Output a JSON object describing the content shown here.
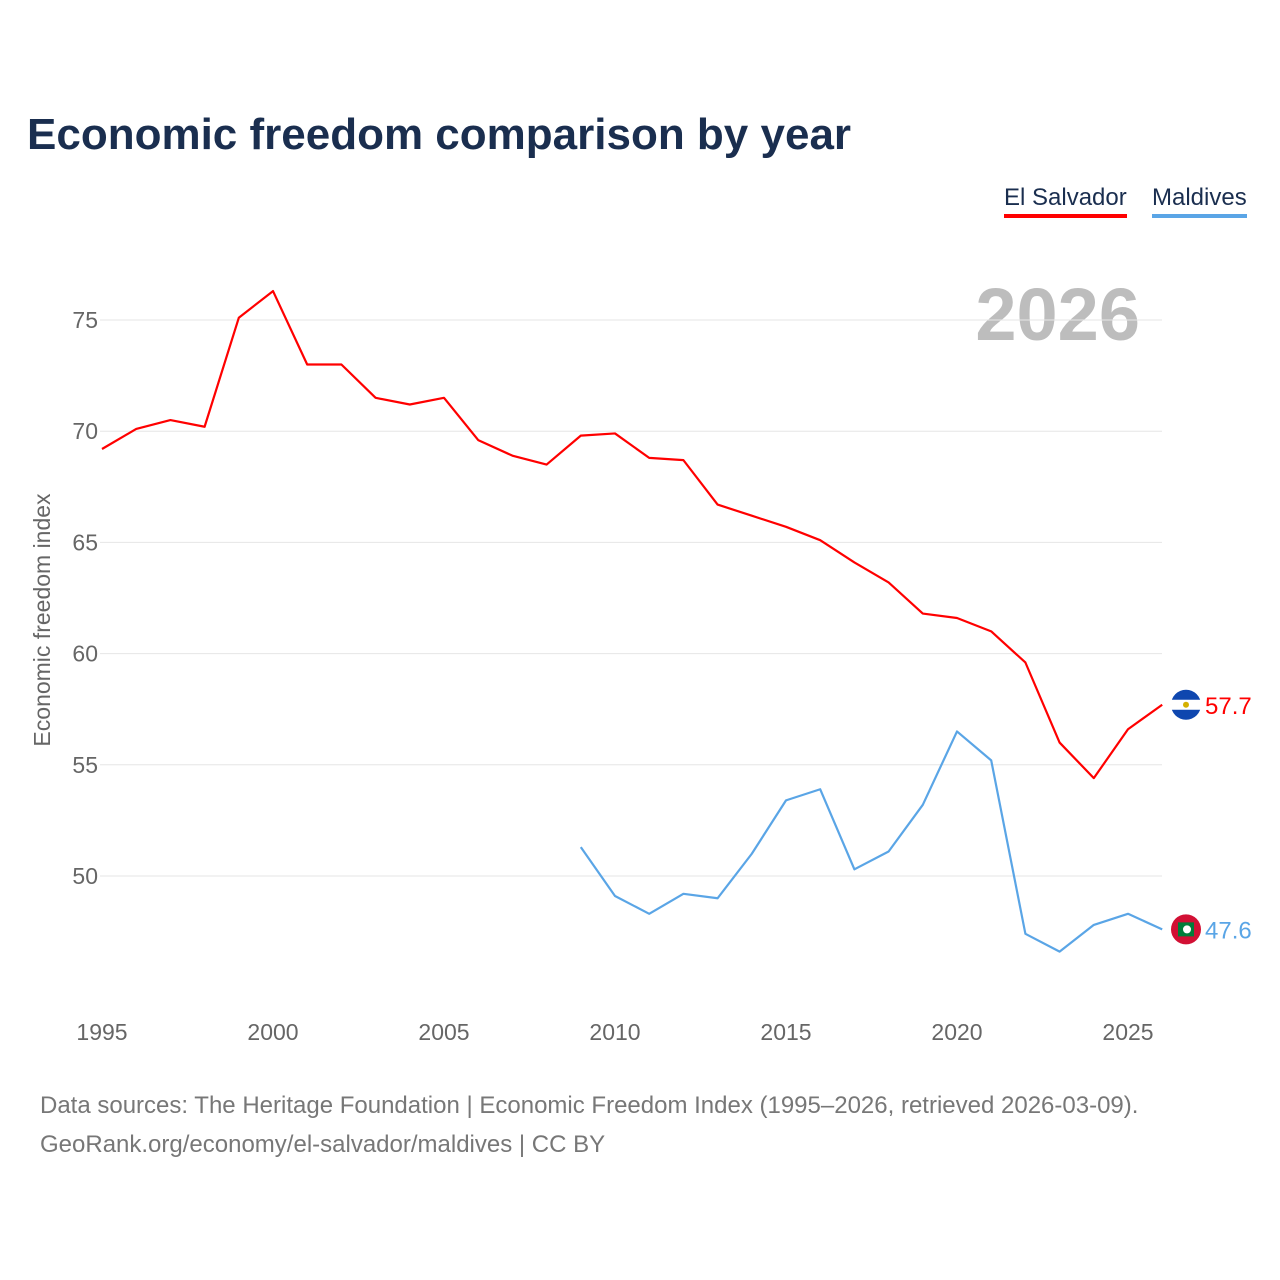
{
  "title": "Economic freedom comparison by year",
  "legend": [
    "El Salvador",
    "Maldives"
  ],
  "year_watermark": "2026",
  "footer": {
    "line1": "Data sources: The Heritage Foundation | Economic Freedom Index (1995–2026, retrieved 2026-03-09).",
    "line2": "GeoRank.org/economy/el-salvador/maldives | CC BY"
  },
  "chart_data": {
    "type": "line",
    "title": "Economic freedom comparison by year",
    "xlabel": "",
    "ylabel": "Economic freedom index",
    "xlim": [
      1995,
      2026
    ],
    "ylim": [
      45,
      77
    ],
    "xticks": [
      1995,
      2000,
      2005,
      2010,
      2015,
      2020,
      2025
    ],
    "yticks": [
      50,
      55,
      60,
      65,
      70,
      75
    ],
    "grid": true,
    "legend_position": "top-right",
    "series": [
      {
        "name": "El Salvador",
        "color": "#ff0000",
        "end_label": "57.7",
        "x": [
          1995,
          1996,
          1997,
          1998,
          1999,
          2000,
          2001,
          2002,
          2003,
          2004,
          2005,
          2006,
          2007,
          2008,
          2009,
          2010,
          2011,
          2012,
          2013,
          2014,
          2015,
          2016,
          2017,
          2018,
          2019,
          2020,
          2021,
          2022,
          2023,
          2024,
          2025,
          2026
        ],
        "values": [
          69.2,
          70.1,
          70.5,
          70.2,
          75.1,
          76.3,
          73.0,
          73.0,
          71.5,
          71.2,
          71.5,
          69.6,
          68.9,
          68.5,
          69.8,
          69.9,
          68.8,
          68.7,
          66.7,
          66.2,
          65.7,
          65.1,
          64.1,
          63.2,
          61.8,
          61.6,
          61.0,
          59.6,
          56.0,
          54.4,
          56.6,
          57.7
        ]
      },
      {
        "name": "Maldives",
        "color": "#5aa5e6",
        "end_label": "47.6",
        "x": [
          2009,
          2010,
          2011,
          2012,
          2013,
          2014,
          2015,
          2016,
          2017,
          2018,
          2019,
          2020,
          2021,
          2022,
          2023,
          2024,
          2025,
          2026
        ],
        "values": [
          51.3,
          49.1,
          48.3,
          49.2,
          49.0,
          51.0,
          53.4,
          53.9,
          50.3,
          51.1,
          53.2,
          56.5,
          55.2,
          47.4,
          46.6,
          47.8,
          48.3,
          47.6
        ]
      }
    ]
  }
}
